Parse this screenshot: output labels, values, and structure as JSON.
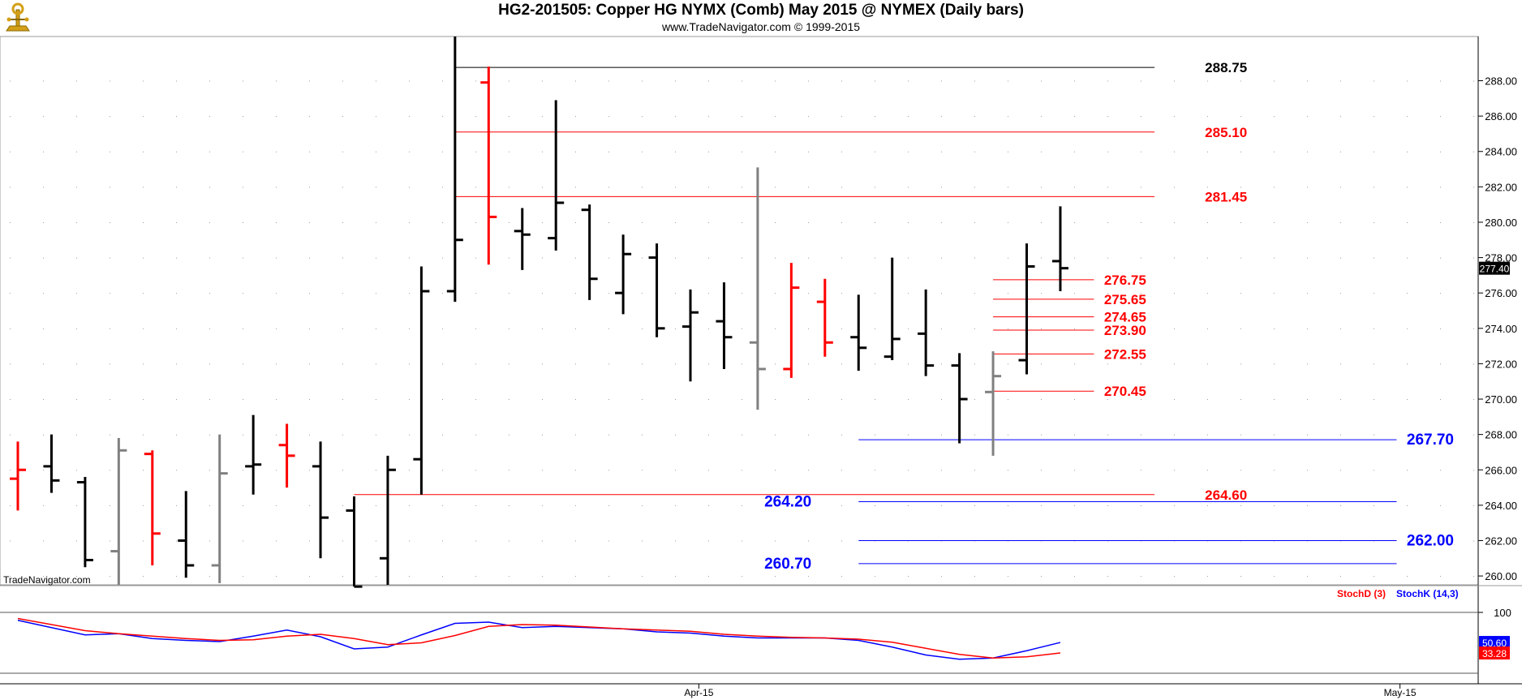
{
  "header": {
    "title": "HG2-201505:  Copper HG NYMX (Comb) May 2015 @ NYMEX  (Daily bars)",
    "subtitle": "www.TradeNavigator.com © 1999-2015"
  },
  "colors": {
    "up": "#000000",
    "down": "#ff0000",
    "neutral": "#808080",
    "resistance": "#ff0000",
    "support": "#0000ff",
    "stochK": "#0000ff",
    "stochD": "#ff0000",
    "last_flag": "#000000"
  },
  "chart_data": [
    {
      "type": "ohlc",
      "title": "HG2-201505:  Copper HG NYMX (Comb) May 2015 @ NYMEX  (Daily bars)",
      "watermark": "TradeNavigator.com",
      "ylim": [
        259.5,
        290.5
      ],
      "y_ticks": [
        "260.00",
        "262.00",
        "264.00",
        "266.00",
        "268.00",
        "270.00",
        "272.00",
        "274.00",
        "276.00",
        "278.00",
        "280.00",
        "282.00",
        "284.00",
        "286.00",
        "288.00"
      ],
      "x_labels": [
        {
          "label": "Apr-15",
          "bar": 20.25
        },
        {
          "label": "May-15",
          "bar": 41.1
        }
      ],
      "last_price": "277.40",
      "bars": [
        {
          "o": 265.5,
          "h": 267.6,
          "l": 263.7,
          "c": 266.0,
          "color": "down"
        },
        {
          "o": 266.2,
          "h": 268.0,
          "l": 264.7,
          "c": 265.4,
          "color": "up"
        },
        {
          "o": 265.3,
          "h": 265.6,
          "l": 260.5,
          "c": 260.9,
          "color": "up"
        },
        {
          "o": 261.4,
          "h": 267.8,
          "l": 259.5,
          "c": 267.1,
          "color": "neutral"
        },
        {
          "o": 266.9,
          "h": 267.1,
          "l": 260.6,
          "c": 262.4,
          "color": "down"
        },
        {
          "o": 262.0,
          "h": 264.8,
          "l": 259.9,
          "c": 260.6,
          "color": "up"
        },
        {
          "o": 260.6,
          "h": 268.0,
          "l": 259.6,
          "c": 265.8,
          "color": "neutral"
        },
        {
          "o": 266.2,
          "h": 269.1,
          "l": 264.6,
          "c": 266.3,
          "color": "up"
        },
        {
          "o": 267.4,
          "h": 268.6,
          "l": 265.0,
          "c": 266.8,
          "color": "down"
        },
        {
          "o": 266.2,
          "h": 267.6,
          "l": 261.0,
          "c": 263.3,
          "color": "up"
        },
        {
          "o": 263.7,
          "h": 264.5,
          "l": 259.4,
          "c": 259.4,
          "color": "up"
        },
        {
          "o": 261.0,
          "h": 266.8,
          "l": 259.5,
          "c": 266.0,
          "color": "up"
        },
        {
          "o": 266.6,
          "h": 277.5,
          "l": 264.6,
          "c": 276.1,
          "color": "up"
        },
        {
          "o": 276.1,
          "h": 290.5,
          "l": 275.5,
          "c": 279.0,
          "color": "up"
        },
        {
          "o": 287.9,
          "h": 288.8,
          "l": 277.6,
          "c": 280.3,
          "color": "down"
        },
        {
          "o": 279.5,
          "h": 280.8,
          "l": 277.3,
          "c": 279.3,
          "color": "up"
        },
        {
          "o": 279.1,
          "h": 286.9,
          "l": 278.4,
          "c": 281.1,
          "color": "up"
        },
        {
          "o": 280.7,
          "h": 281.0,
          "l": 275.6,
          "c": 276.8,
          "color": "up"
        },
        {
          "o": 276.0,
          "h": 279.3,
          "l": 274.8,
          "c": 278.2,
          "color": "up"
        },
        {
          "o": 278.0,
          "h": 278.8,
          "l": 273.5,
          "c": 274.0,
          "color": "up"
        },
        {
          "o": 274.1,
          "h": 276.2,
          "l": 271.0,
          "c": 274.9,
          "color": "up"
        },
        {
          "o": 274.4,
          "h": 276.6,
          "l": 271.7,
          "c": 273.5,
          "color": "up"
        },
        {
          "o": 273.2,
          "h": 283.1,
          "l": 269.4,
          "c": 271.7,
          "color": "neutral"
        },
        {
          "o": 271.7,
          "h": 277.7,
          "l": 271.2,
          "c": 276.3,
          "color": "down"
        },
        {
          "o": 275.5,
          "h": 276.8,
          "l": 272.4,
          "c": 273.2,
          "color": "down"
        },
        {
          "o": 273.5,
          "h": 275.9,
          "l": 271.6,
          "c": 272.9,
          "color": "up"
        },
        {
          "o": 272.4,
          "h": 278.0,
          "l": 272.2,
          "c": 273.4,
          "color": "up"
        },
        {
          "o": 273.7,
          "h": 276.2,
          "l": 271.3,
          "c": 271.9,
          "color": "up"
        },
        {
          "o": 271.9,
          "h": 272.6,
          "l": 267.5,
          "c": 270.0,
          "color": "up"
        },
        {
          "o": 270.4,
          "h": 272.7,
          "l": 266.8,
          "c": 271.3,
          "color": "neutral"
        },
        {
          "o": 272.2,
          "h": 278.8,
          "l": 271.4,
          "c": 277.5,
          "color": "up"
        },
        {
          "o": 277.8,
          "h": 280.9,
          "l": 276.1,
          "c": 277.4,
          "color": "up"
        }
      ],
      "levels": [
        {
          "label": "288.75",
          "value": 288.75,
          "color": "#000000",
          "from_bar": 13.0,
          "to_bar": 33.8,
          "label_side": "right",
          "label_bar": 35.3
        },
        {
          "label": "285.10",
          "value": 285.1,
          "color": "#ff0000",
          "from_bar": 13.0,
          "to_bar": 33.8,
          "label_side": "right",
          "label_bar": 35.3
        },
        {
          "label": "281.45",
          "value": 281.45,
          "color": "#ff0000",
          "from_bar": 13.0,
          "to_bar": 33.8,
          "label_side": "right",
          "label_bar": 35.3
        },
        {
          "label": "276.75",
          "value": 276.75,
          "color": "#ff0000",
          "from_bar": 29.0,
          "to_bar": 32.0,
          "label_side": "right",
          "label_bar": 32.3
        },
        {
          "label": "275.65",
          "value": 275.65,
          "color": "#ff0000",
          "from_bar": 29.0,
          "to_bar": 32.0,
          "label_side": "right",
          "label_bar": 32.3
        },
        {
          "label": "274.65",
          "value": 274.65,
          "color": "#ff0000",
          "from_bar": 29.0,
          "to_bar": 32.0,
          "label_side": "right",
          "label_bar": 32.3
        },
        {
          "label": "273.90",
          "value": 273.9,
          "color": "#ff0000",
          "from_bar": 29.0,
          "to_bar": 32.0,
          "label_side": "right",
          "label_bar": 32.3
        },
        {
          "label": "272.55",
          "value": 272.55,
          "color": "#ff0000",
          "from_bar": 29.0,
          "to_bar": 32.0,
          "label_side": "right",
          "label_bar": 32.3
        },
        {
          "label": "270.45",
          "value": 270.45,
          "color": "#ff0000",
          "from_bar": 29.0,
          "to_bar": 32.0,
          "label_side": "right",
          "label_bar": 32.3
        },
        {
          "label": "267.70",
          "value": 267.7,
          "color": "#0000ff",
          "from_bar": 25.0,
          "to_bar": 41.0,
          "label_side": "right",
          "label_bar": 41.3
        },
        {
          "label": "264.60",
          "value": 264.6,
          "color": "#ff0000",
          "from_bar": 10.0,
          "to_bar": 33.8,
          "label_side": "right",
          "label_bar": 35.3
        },
        {
          "label": "264.20",
          "value": 264.2,
          "color": "#0000ff",
          "from_bar": 25.0,
          "to_bar": 41.0,
          "label_side": "left",
          "label_bar": 23.6
        },
        {
          "label": "262.00",
          "value": 262.0,
          "color": "#0000ff",
          "from_bar": 25.0,
          "to_bar": 41.0,
          "label_side": "right",
          "label_bar": 41.3
        },
        {
          "label": "260.70",
          "value": 260.7,
          "color": "#0000ff",
          "from_bar": 25.0,
          "to_bar": 41.0,
          "label_side": "left",
          "label_bar": 23.6
        }
      ]
    },
    {
      "type": "line",
      "indicator": "Stochastic",
      "ylim": [
        0,
        100
      ],
      "y_ticks": [
        "100"
      ],
      "legend": [
        {
          "name": "StochD (3)",
          "color": "#ff0000"
        },
        {
          "name": "StochK (14,3)",
          "color": "#0000ff"
        }
      ],
      "last_values": {
        "k": "50.60",
        "d": "33.28"
      },
      "series": [
        {
          "name": "StochK (14,3)",
          "values": [
            87,
            75,
            63,
            65,
            57,
            54,
            52,
            61,
            71,
            60,
            40,
            43,
            63,
            82,
            84,
            75,
            77,
            75,
            73,
            68,
            66,
            61,
            58,
            58,
            58,
            54,
            43,
            30,
            23,
            25,
            37,
            50.6
          ]
        },
        {
          "name": "StochD (3)",
          "values": [
            90,
            80,
            70,
            65,
            61,
            57,
            54,
            55,
            61,
            64,
            57,
            47,
            50,
            62,
            77,
            80,
            79,
            76,
            73,
            71,
            69,
            64,
            61,
            59,
            58,
            56,
            51,
            41,
            31,
            25,
            27,
            33.28
          ]
        }
      ]
    }
  ]
}
